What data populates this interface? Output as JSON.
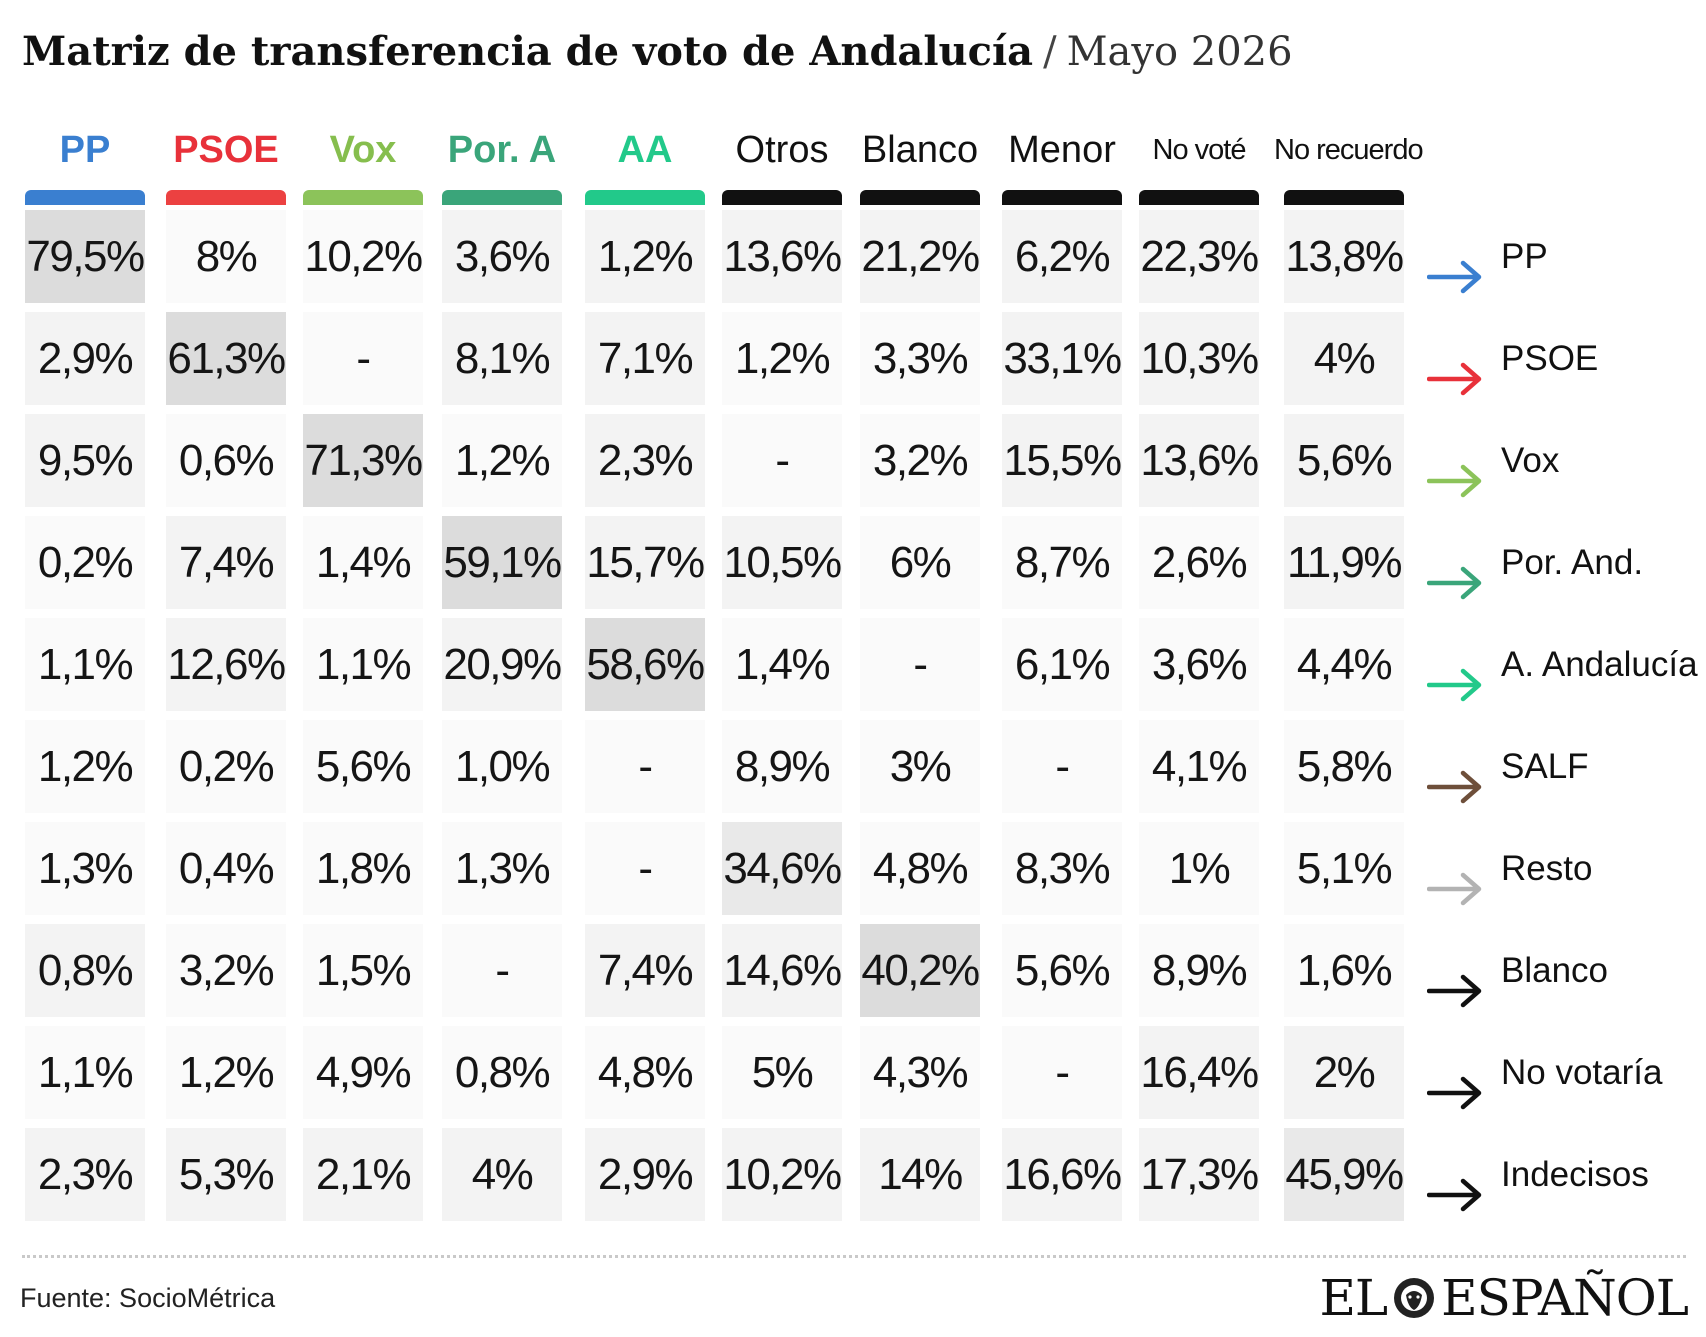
{
  "title": {
    "main": "Matriz de transferencia de voto de Andalucía",
    "separator": "/",
    "subtitle": "Mayo 2026"
  },
  "chart_data": {
    "type": "table",
    "columns": [
      {
        "label": "PP",
        "color": "#3a7fd0",
        "text_color": "#3a7fd0",
        "style": "party"
      },
      {
        "label": "PSOE",
        "color": "#ec4141",
        "text_color": "#e8313a",
        "style": "party"
      },
      {
        "label": "Vox",
        "color": "#8cc35a",
        "text_color": "#86be4e",
        "style": "party"
      },
      {
        "label": "Por. A",
        "color": "#3aa57a",
        "text_color": "#3aa57a",
        "style": "party"
      },
      {
        "label": "AA",
        "color": "#22c98a",
        "text_color": "#22c98a",
        "style": "party"
      },
      {
        "label": "Otros",
        "color": "#111111",
        "text_color": "#111111",
        "style": "plain"
      },
      {
        "label": "Blanco",
        "color": "#111111",
        "text_color": "#111111",
        "style": "plain"
      },
      {
        "label": "Menor",
        "color": "#111111",
        "text_color": "#111111",
        "style": "plain"
      },
      {
        "label": "No voté",
        "color": "#111111",
        "text_color": "#111111",
        "style": "small"
      },
      {
        "label": "No recuerdo",
        "color": "#111111",
        "text_color": "#111111",
        "style": "small"
      }
    ],
    "rows": [
      {
        "label": "PP",
        "arrow_color": "#3a7fd0",
        "values": [
          "79,5%",
          "8%",
          "10,2%",
          "3,6%",
          "1,2%",
          "13,6%",
          "21,2%",
          "6,2%",
          "22,3%",
          "13,8%"
        ],
        "shades": [
          3,
          0,
          0,
          1,
          1,
          1,
          1,
          1,
          1,
          1
        ]
      },
      {
        "label": "PSOE",
        "arrow_color": "#e8313a",
        "values": [
          "2,9%",
          "61,3%",
          "-",
          "8,1%",
          "7,1%",
          "1,2%",
          "3,3%",
          "33,1%",
          "10,3%",
          "4%"
        ],
        "shades": [
          1,
          3,
          0,
          1,
          1,
          0,
          0,
          1,
          1,
          1
        ]
      },
      {
        "label": "Vox",
        "arrow_color": "#8cc35a",
        "values": [
          "9,5%",
          "0,6%",
          "71,3%",
          "1,2%",
          "2,3%",
          "-",
          "3,2%",
          "15,5%",
          "13,6%",
          "5,6%"
        ],
        "shades": [
          1,
          0,
          3,
          0,
          1,
          0,
          0,
          1,
          1,
          1
        ]
      },
      {
        "label": "Por. And.",
        "arrow_color": "#3aa57a",
        "values": [
          "0,2%",
          "7,4%",
          "1,4%",
          "59,1%",
          "15,7%",
          "10,5%",
          "6%",
          "8,7%",
          "2,6%",
          "11,9%"
        ],
        "shades": [
          0,
          1,
          0,
          3,
          1,
          1,
          0,
          0,
          0,
          1
        ]
      },
      {
        "label": "A. Andalucía",
        "arrow_color": "#22c98a",
        "values": [
          "1,1%",
          "12,6%",
          "1,1%",
          "20,9%",
          "58,6%",
          "1,4%",
          "-",
          "6,1%",
          "3,6%",
          "4,4%"
        ],
        "shades": [
          0,
          1,
          0,
          1,
          3,
          0,
          0,
          0,
          0,
          0
        ]
      },
      {
        "label": "SALF",
        "arrow_color": "#6e4f3a",
        "values": [
          "1,2%",
          "0,2%",
          "5,6%",
          "1,0%",
          "-",
          "8,9%",
          "3%",
          "-",
          "4,1%",
          "5,8%"
        ],
        "shades": [
          0,
          0,
          0,
          0,
          0,
          0,
          0,
          0,
          0,
          0
        ]
      },
      {
        "label": "Resto",
        "arrow_color": "#b3b3b3",
        "values": [
          "1,3%",
          "0,4%",
          "1,8%",
          "1,3%",
          "-",
          "34,6%",
          "4,8%",
          "8,3%",
          "1%",
          "5,1%"
        ],
        "shades": [
          0,
          0,
          0,
          0,
          0,
          2,
          0,
          0,
          0,
          0
        ]
      },
      {
        "label": "Blanco",
        "arrow_color": "#111111",
        "values": [
          "0,8%",
          "3,2%",
          "1,5%",
          "-",
          "7,4%",
          "14,6%",
          "40,2%",
          "5,6%",
          "8,9%",
          "1,6%"
        ],
        "shades": [
          1,
          0,
          0,
          0,
          1,
          1,
          3,
          0,
          0,
          0
        ]
      },
      {
        "label": "No votaría",
        "arrow_color": "#111111",
        "values": [
          "1,1%",
          "1,2%",
          "4,9%",
          "0,8%",
          "4,8%",
          "5%",
          "4,3%",
          "-",
          "16,4%",
          "2%"
        ],
        "shades": [
          0,
          0,
          0,
          0,
          0,
          0,
          0,
          0,
          1,
          1
        ]
      },
      {
        "label": "Indecisos",
        "arrow_color": "#111111",
        "values": [
          "2,3%",
          "5,3%",
          "2,1%",
          "4%",
          "2,9%",
          "10,2%",
          "14%",
          "16,6%",
          "17,3%",
          "45,9%"
        ],
        "shades": [
          1,
          1,
          1,
          1,
          1,
          1,
          1,
          1,
          1,
          2
        ]
      }
    ],
    "shade_colors": [
      "#fafafa",
      "#f3f3f3",
      "#e9e9e9",
      "#dcdcdc"
    ]
  },
  "footer": {
    "source": "Fuente: SocioMétrica",
    "logo_left": "EL",
    "logo_right": "ESPAÑOL"
  }
}
